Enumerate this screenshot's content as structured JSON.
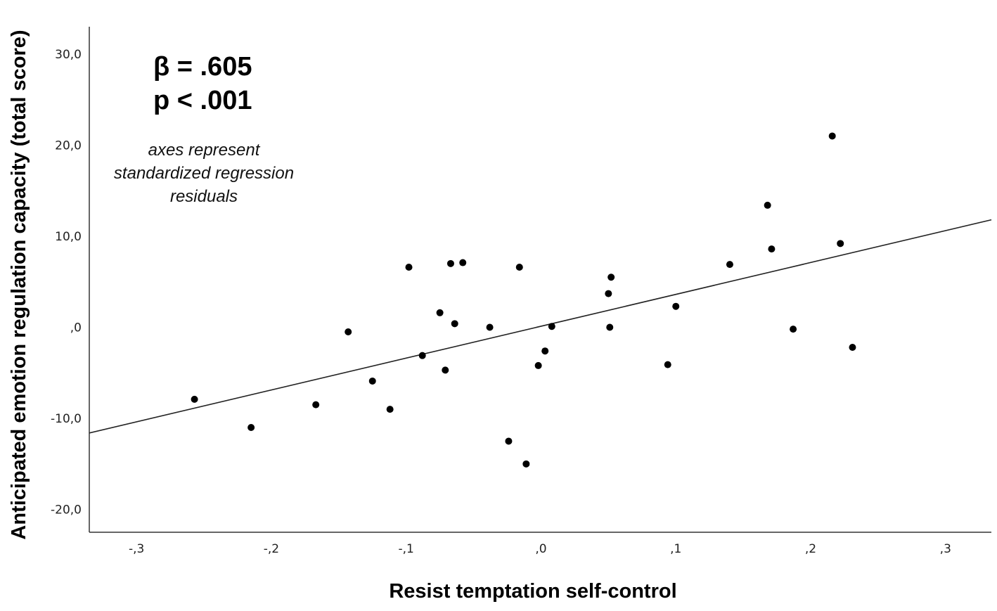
{
  "chart_data": {
    "type": "scatter",
    "xlabel": "Resist temptation self-control",
    "ylabel": "Anticipated emotion regulation capacity (total score)",
    "xlim": [
      -0.335,
      0.334
    ],
    "ylim": [
      -22.5,
      33.0
    ],
    "x_ticks": [
      -0.3,
      -0.2,
      -0.1,
      0.0,
      0.1,
      0.2,
      0.3
    ],
    "x_tick_labels": [
      "-,3",
      "-,2",
      "-,1",
      ",0",
      ",1",
      ",2",
      ",3"
    ],
    "y_ticks": [
      30,
      20,
      10,
      0,
      -10,
      -20
    ],
    "y_tick_labels": [
      "30,0",
      "20,0",
      "10,0",
      ",0",
      "-10,0",
      "-20,0"
    ],
    "grid": false,
    "annotations": {
      "stat_lines": [
        "β = .605",
        "p < .001"
      ],
      "note_lines": [
        "axes represent",
        "standardized regression",
        "residuals"
      ]
    },
    "fit_line": {
      "x": [
        -0.335,
        0.334
      ],
      "y": [
        -11.6,
        11.8
      ]
    },
    "points": [
      {
        "x": -0.257,
        "y": -7.9
      },
      {
        "x": -0.215,
        "y": -11.0
      },
      {
        "x": -0.167,
        "y": -8.5
      },
      {
        "x": -0.143,
        "y": -0.5
      },
      {
        "x": -0.125,
        "y": -5.9
      },
      {
        "x": -0.112,
        "y": -9.0
      },
      {
        "x": -0.098,
        "y": 6.6
      },
      {
        "x": -0.088,
        "y": -3.1
      },
      {
        "x": -0.075,
        "y": 1.6
      },
      {
        "x": -0.071,
        "y": -4.7
      },
      {
        "x": -0.067,
        "y": 7.0
      },
      {
        "x": -0.064,
        "y": 0.4
      },
      {
        "x": -0.058,
        "y": 7.1
      },
      {
        "x": -0.038,
        "y": 0.0
      },
      {
        "x": -0.024,
        "y": -12.5
      },
      {
        "x": -0.016,
        "y": 6.6
      },
      {
        "x": -0.011,
        "y": -15.0
      },
      {
        "x": -0.002,
        "y": -4.2
      },
      {
        "x": 0.003,
        "y": -2.6
      },
      {
        "x": 0.008,
        "y": 0.1
      },
      {
        "x": 0.05,
        "y": 3.7
      },
      {
        "x": 0.051,
        "y": 0.0
      },
      {
        "x": 0.052,
        "y": 5.5
      },
      {
        "x": 0.094,
        "y": -4.1
      },
      {
        "x": 0.1,
        "y": 2.3
      },
      {
        "x": 0.14,
        "y": 6.9
      },
      {
        "x": 0.168,
        "y": 13.4
      },
      {
        "x": 0.171,
        "y": 8.6
      },
      {
        "x": 0.187,
        "y": -0.2
      },
      {
        "x": 0.216,
        "y": 21.0
      },
      {
        "x": 0.222,
        "y": 9.2
      },
      {
        "x": 0.231,
        "y": -2.2
      }
    ]
  }
}
